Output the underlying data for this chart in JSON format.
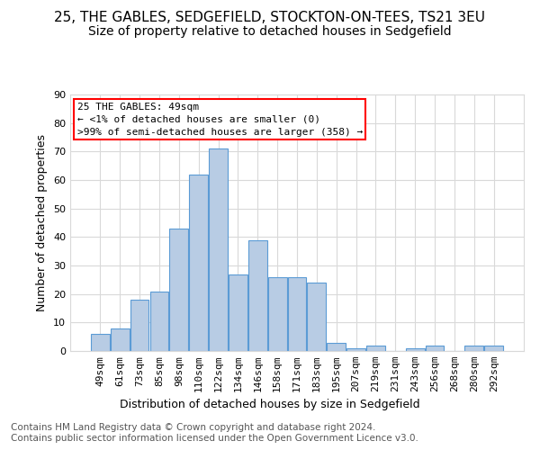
{
  "title_line1": "25, THE GABLES, SEDGEFIELD, STOCKTON-ON-TEES, TS21 3EU",
  "title_line2": "Size of property relative to detached houses in Sedgefield",
  "xlabel": "Distribution of detached houses by size in Sedgefield",
  "ylabel": "Number of detached properties",
  "categories": [
    "49sqm",
    "61sqm",
    "73sqm",
    "85sqm",
    "98sqm",
    "110sqm",
    "122sqm",
    "134sqm",
    "146sqm",
    "158sqm",
    "171sqm",
    "183sqm",
    "195sqm",
    "207sqm",
    "219sqm",
    "231sqm",
    "243sqm",
    "256sqm",
    "268sqm",
    "280sqm",
    "292sqm"
  ],
  "values": [
    6,
    8,
    18,
    21,
    43,
    62,
    71,
    27,
    39,
    26,
    26,
    24,
    3,
    1,
    2,
    0,
    1,
    2,
    0,
    2,
    2
  ],
  "bar_color": "#b8cce4",
  "bar_edge_color": "#5b9bd5",
  "annotation_text": "25 THE GABLES: 49sqm\n← <1% of detached houses are smaller (0)\n>99% of semi-detached houses are larger (358) →",
  "annotation_box_color": "#ffffff",
  "annotation_box_edge_color": "#ff0000",
  "ylim": [
    0,
    90
  ],
  "yticks": [
    0,
    10,
    20,
    30,
    40,
    50,
    60,
    70,
    80,
    90
  ],
  "footer_text": "Contains HM Land Registry data © Crown copyright and database right 2024.\nContains public sector information licensed under the Open Government Licence v3.0.",
  "background_color": "#ffffff",
  "grid_color": "#d9d9d9",
  "title_fontsize": 11,
  "subtitle_fontsize": 10,
  "axis_label_fontsize": 9,
  "tick_fontsize": 8,
  "annotation_fontsize": 8,
  "footer_fontsize": 7.5
}
